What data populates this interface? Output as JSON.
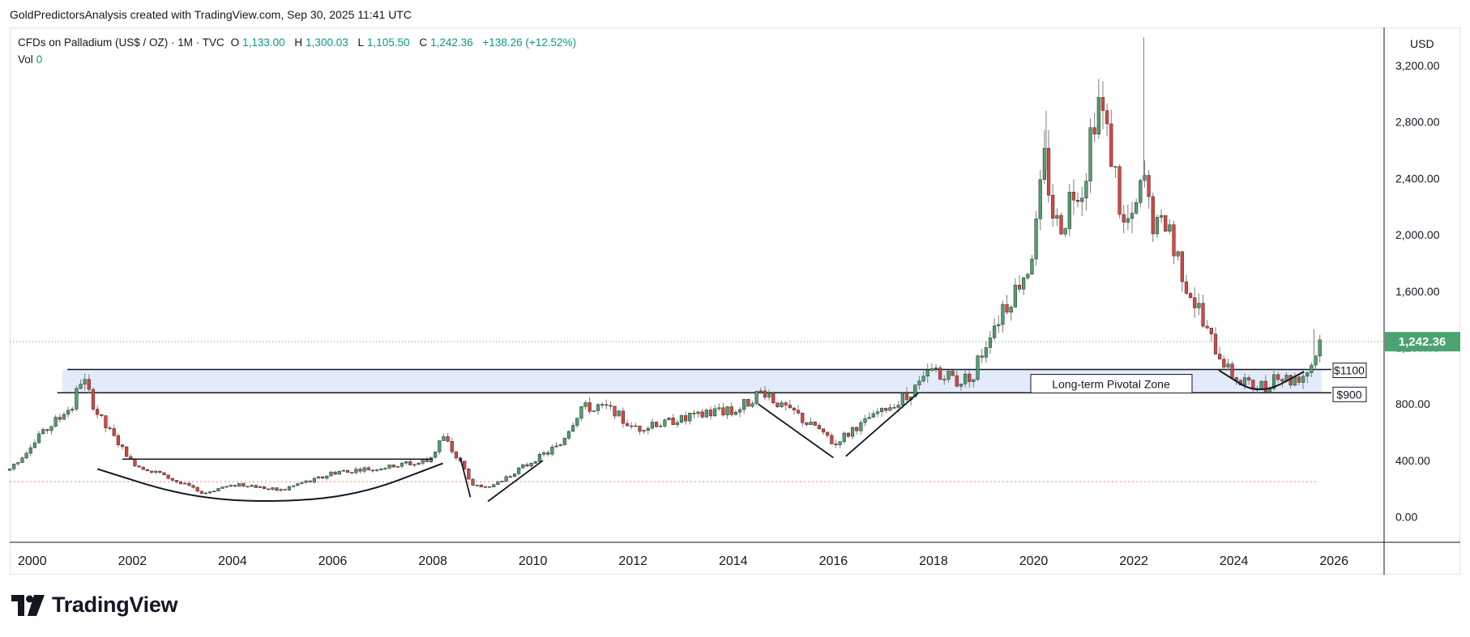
{
  "header": {
    "attribution": "GoldPredictorsAnalysis created with TradingView.com, Sep 30, 2025 11:41 UTC"
  },
  "legend": {
    "symbol": "CFDs on Palladium (US$ / OZ) · 1M · TVC",
    "open_label": "O",
    "open": "1,133.00",
    "high_label": "H",
    "high": "1,300.03",
    "low_label": "L",
    "low": "1,105.50",
    "close_label": "C",
    "close": "1,242.36",
    "change": "+138.26 (+12.52%)",
    "vol_label": "Vol",
    "vol_value": "0"
  },
  "brand": {
    "name": "TradingView"
  },
  "colors": {
    "up": "#4f9f6e",
    "down": "#d9463f",
    "wick": "#7c7c7c",
    "zone": "#e3ebfb",
    "price_tag": "#4ca36f"
  },
  "chart_data": {
    "type": "candlestick",
    "symbol": "CFDs on Palladium (US$ / OZ)",
    "interval": "1M",
    "y_axis_unit": "USD",
    "ylim": [
      -180,
      3470
    ],
    "y_ticks": [
      "3,200.00",
      "2,800.00",
      "2,400.00",
      "2,000.00",
      "1,600.00",
      "1,200.00",
      "800.00",
      "400.00",
      "0.00"
    ],
    "x_ticks": [
      "2000",
      "2002",
      "2004",
      "2006",
      "2008",
      "2010",
      "2012",
      "2014",
      "2016",
      "2018",
      "2020",
      "2022",
      "2024",
      "2026"
    ],
    "last_price": "1,242.36",
    "last_price_value": 1242.36,
    "x_range": [
      1999.55,
      2027.0
    ],
    "anchors": [
      [
        1999.55,
        330
      ],
      [
        2000.2,
        600
      ],
      [
        2000.8,
        800
      ],
      [
        2001.0,
        1000
      ],
      [
        2001.2,
        800
      ],
      [
        2001.6,
        580
      ],
      [
        2002.0,
        380
      ],
      [
        2003.0,
        240
      ],
      [
        2003.4,
        170
      ],
      [
        2004.1,
        230
      ],
      [
        2005.0,
        190
      ],
      [
        2006.0,
        310
      ],
      [
        2007.0,
        350
      ],
      [
        2007.9,
        400
      ],
      [
        2008.2,
        560
      ],
      [
        2008.5,
        420
      ],
      [
        2008.8,
        220
      ],
      [
        2009.2,
        220
      ],
      [
        2010.0,
        400
      ],
      [
        2010.5,
        500
      ],
      [
        2011.0,
        780
      ],
      [
        2011.6,
        760
      ],
      [
        2012.0,
        620
      ],
      [
        2013.0,
        700
      ],
      [
        2014.0,
        760
      ],
      [
        2014.6,
        880
      ],
      [
        2015.0,
        780
      ],
      [
        2015.6,
        640
      ],
      [
        2016.0,
        520
      ],
      [
        2016.6,
        660
      ],
      [
        2017.0,
        760
      ],
      [
        2017.6,
        900
      ],
      [
        2018.0,
        1040
      ],
      [
        2018.5,
        960
      ],
      [
        2018.8,
        1020
      ],
      [
        2019.2,
        1380
      ],
      [
        2019.6,
        1560
      ],
      [
        2020.0,
        1900
      ],
      [
        2020.2,
        2550
      ],
      [
        2020.5,
        2000
      ],
      [
        2020.8,
        2300
      ],
      [
        2021.0,
        2350
      ],
      [
        2021.25,
        2900
      ],
      [
        2021.5,
        2700
      ],
      [
        2021.8,
        2000
      ],
      [
        2022.0,
        2100
      ],
      [
        2022.2,
        2400
      ],
      [
        2022.4,
        2050
      ],
      [
        2022.6,
        2100
      ],
      [
        2023.0,
        1700
      ],
      [
        2023.3,
        1450
      ],
      [
        2023.6,
        1200
      ],
      [
        2023.9,
        1050
      ],
      [
        2024.2,
        950
      ],
      [
        2024.6,
        920
      ],
      [
        2024.9,
        1000
      ],
      [
        2025.2,
        950
      ],
      [
        2025.5,
        1080
      ],
      [
        2025.75,
        1242
      ]
    ],
    "levels": [
      {
        "label": "$1100",
        "value": 1045
      },
      {
        "label": "$900",
        "value": 880
      }
    ],
    "pivotal_zone": {
      "label": "Long-term Pivotal Zone",
      "from": 880,
      "to": 1045
    },
    "dotted_support": 250,
    "annotations": [
      {
        "type": "resistance_line",
        "x1": 2001.8,
        "x2": 2008.0,
        "y": 410
      },
      {
        "type": "arc",
        "points": [
          [
            2001.3,
            340
          ],
          [
            2003.0,
            150
          ],
          [
            2004.65,
            100
          ],
          [
            2006.5,
            150
          ],
          [
            2008.2,
            380
          ]
        ]
      },
      {
        "type": "trendline",
        "x1": 2008.55,
        "x2": 2008.75,
        "y1": 420,
        "y2": 140
      },
      {
        "type": "trendline",
        "x1": 2009.1,
        "x2": 2010.2,
        "y1": 110,
        "y2": 400
      },
      {
        "type": "trendline",
        "x1": 2014.5,
        "x2": 2016.0,
        "y1": 800,
        "y2": 420
      },
      {
        "type": "trendline",
        "x1": 2016.25,
        "x2": 2017.7,
        "y1": 430,
        "y2": 880
      },
      {
        "type": "arc",
        "points": [
          [
            2023.7,
            1040
          ],
          [
            2024.5,
            860
          ],
          [
            2025.4,
            1030
          ]
        ]
      }
    ]
  }
}
